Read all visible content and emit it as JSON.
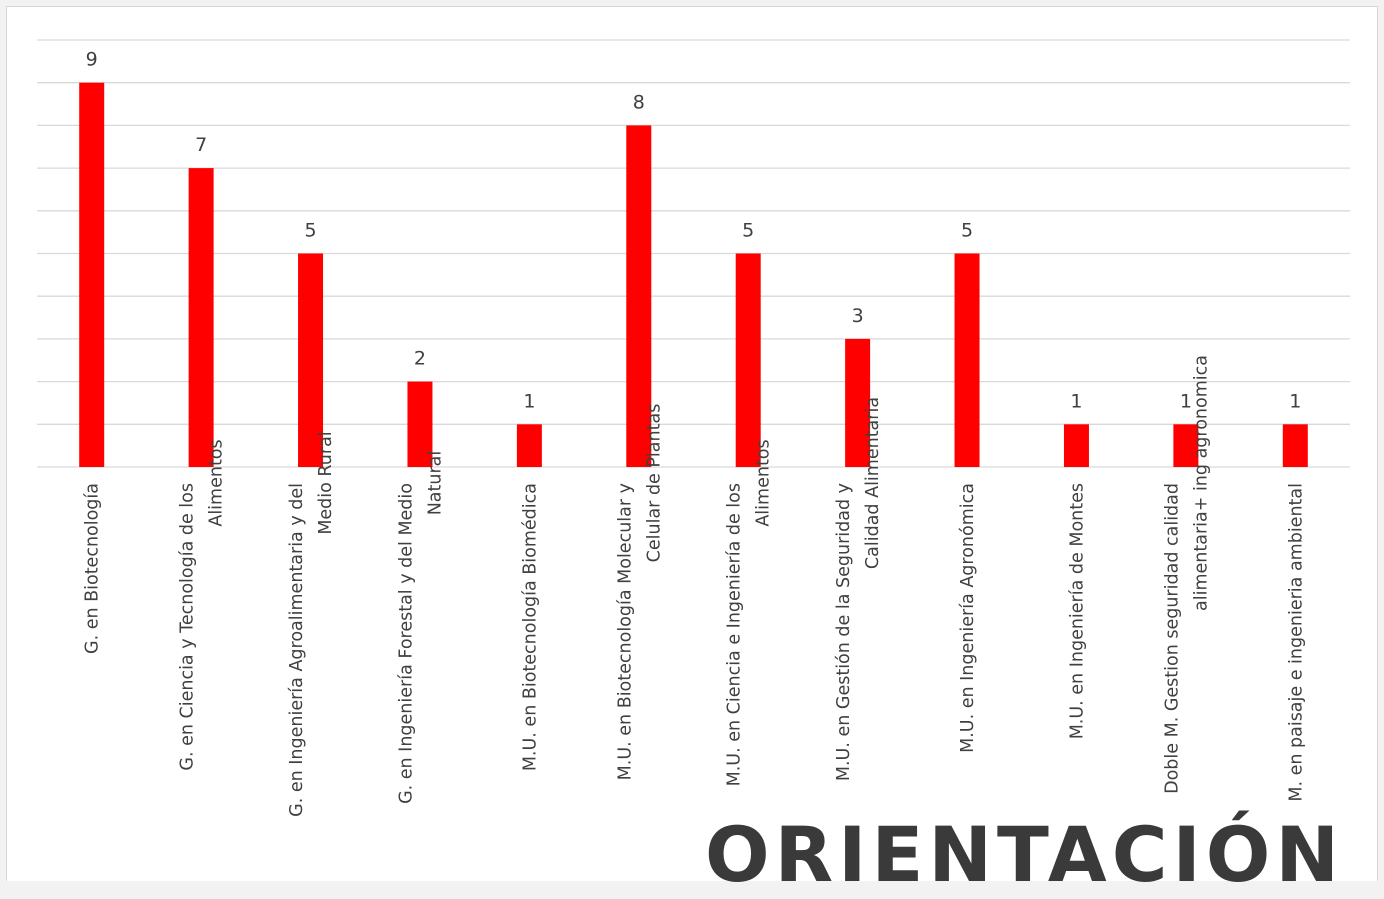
{
  "chart_data": {
    "type": "bar",
    "categories": [
      [
        "G. en Biotecnología"
      ],
      [
        "G. en Ciencia y Tecnología de los",
        "Alimentos"
      ],
      [
        "G. en Ingeniería Agroalimentaria y del",
        "Medio Rural"
      ],
      [
        "G. en Ingeniería Forestal y del Medio",
        "Natural"
      ],
      [
        "M.U. en Biotecnología Biomédica"
      ],
      [
        "M.U. en Biotecnología Molecular y",
        "Celular de Plantas"
      ],
      [
        "M.U. en Ciencia e Ingeniería de los",
        "Alimentos"
      ],
      [
        "M.U. en Gestión de la Seguridad y",
        "Calidad Alimentaria"
      ],
      [
        "M.U. en Ingeniería Agronómica"
      ],
      [
        "M.U. en Ingeniería de Montes"
      ],
      [
        "Doble M. Gestion seguridad calidad",
        "alimentaria+ ing agronomica"
      ],
      [
        "M. en paisaje e ingenieria ambiental"
      ]
    ],
    "values": [
      9,
      7,
      5,
      2,
      1,
      8,
      5,
      3,
      5,
      1,
      1,
      1
    ],
    "ylim": [
      0,
      10
    ],
    "grid": true,
    "data_labels": true,
    "bar_color": "#ff0000",
    "grid_color": "#d9d9d9",
    "text_color": "#404040"
  },
  "overlay": {
    "title": "ORIENTACIÓN"
  }
}
